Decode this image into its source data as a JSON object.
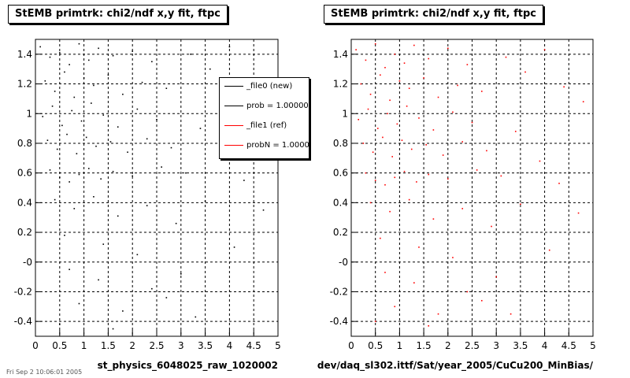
{
  "panels": [
    {
      "title": "StEMB primtrk: chi2/ndf x,y fit, ftpc",
      "xlabel": "st_physics_6048025_raw_1020002"
    },
    {
      "title": "StEMB primtrk: chi2/ndf x,y fit, ftpc",
      "xlabel": "dev/daq_sl302.ittf/Sat/year_2005/CuCu200_MinBias/"
    }
  ],
  "legend": {
    "entries": [
      {
        "label": "_file0 (new)",
        "color": "#000000"
      },
      {
        "label": "prob = 1.000000",
        "color": "#000000"
      },
      {
        "label": "_file1 (ref)",
        "color": "#ff0000"
      },
      {
        "label": "probN = 1.000000",
        "color": "#ff0000"
      }
    ]
  },
  "footer": "Fri Sep 2 10:06:01 2005",
  "chart_data": [
    {
      "type": "scatter",
      "title": "StEMB primtrk: chi2/ndf x,y fit, ftpc",
      "xlabel": "st_physics_6048025_raw_1020002",
      "ylabel": "",
      "xlim": [
        0,
        5
      ],
      "ylim": [
        -0.5,
        1.5
      ],
      "xticks": [
        "0",
        "0.5",
        "1",
        "1.5",
        "2",
        "2.5",
        "3",
        "3.5",
        "4",
        "4.5",
        "5"
      ],
      "yticks": [
        "-0.4",
        "-0.2",
        "-0",
        "0.2",
        "0.4",
        "0.6",
        "0.8",
        "1",
        "1.2",
        "1.4"
      ],
      "grid": true,
      "marker_color": "#000000",
      "series": [
        {
          "name": "_file0 (new)",
          "points": [
            [
              0.1,
              1.45
            ],
            [
              0.3,
              1.38
            ],
            [
              0.5,
              1.41
            ],
            [
              0.7,
              1.33
            ],
            [
              0.9,
              1.47
            ],
            [
              1.1,
              1.36
            ],
            [
              1.3,
              1.44
            ],
            [
              1.6,
              1.39
            ],
            [
              2.0,
              1.42
            ],
            [
              2.4,
              1.35
            ],
            [
              0.2,
              1.22
            ],
            [
              0.4,
              1.15
            ],
            [
              0.6,
              1.28
            ],
            [
              0.8,
              1.11
            ],
            [
              1.0,
              1.24
            ],
            [
              1.2,
              1.19
            ],
            [
              1.5,
              1.26
            ],
            [
              1.8,
              1.13
            ],
            [
              2.2,
              1.21
            ],
            [
              2.7,
              1.17
            ],
            [
              0.15,
              0.98
            ],
            [
              0.35,
              1.05
            ],
            [
              0.55,
              0.92
            ],
            [
              0.75,
              1.02
            ],
            [
              0.95,
              0.95
            ],
            [
              1.15,
              1.07
            ],
            [
              1.4,
              0.99
            ],
            [
              1.7,
              0.91
            ],
            [
              2.1,
              1.03
            ],
            [
              2.5,
              0.96
            ],
            [
              0.25,
              0.82
            ],
            [
              0.45,
              0.76
            ],
            [
              0.65,
              0.86
            ],
            [
              0.85,
              0.73
            ],
            [
              1.05,
              0.84
            ],
            [
              1.25,
              0.78
            ],
            [
              1.55,
              0.81
            ],
            [
              1.9,
              0.74
            ],
            [
              2.3,
              0.83
            ],
            [
              2.8,
              0.77
            ],
            [
              0.3,
              0.62
            ],
            [
              0.5,
              0.57
            ],
            [
              0.7,
              0.54
            ],
            [
              0.9,
              0.59
            ],
            [
              1.1,
              0.63
            ],
            [
              1.35,
              0.56
            ],
            [
              1.6,
              0.61
            ],
            [
              2.0,
              0.58
            ],
            [
              2.6,
              0.64
            ],
            [
              3.1,
              0.6
            ],
            [
              0.4,
              0.42
            ],
            [
              0.8,
              0.36
            ],
            [
              1.2,
              0.44
            ],
            [
              1.7,
              0.31
            ],
            [
              2.3,
              0.38
            ],
            [
              2.9,
              0.26
            ],
            [
              3.5,
              0.41
            ],
            [
              0.6,
              0.18
            ],
            [
              1.4,
              0.12
            ],
            [
              2.1,
              0.05
            ],
            [
              0.7,
              -0.05
            ],
            [
              1.3,
              -0.12
            ],
            [
              2.4,
              -0.18
            ],
            [
              3.0,
              -0.08
            ],
            [
              0.9,
              -0.28
            ],
            [
              1.8,
              -0.33
            ],
            [
              2.7,
              -0.24
            ],
            [
              0.5,
              -0.42
            ],
            [
              1.6,
              -0.45
            ],
            [
              3.3,
              -0.37
            ],
            [
              3.2,
              1.4
            ],
            [
              3.6,
              1.3
            ],
            [
              4.0,
              1.45
            ],
            [
              4.4,
              1.2
            ],
            [
              4.8,
              1.1
            ],
            [
              3.4,
              0.9
            ],
            [
              3.9,
              0.7
            ],
            [
              4.3,
              0.55
            ],
            [
              4.7,
              0.35
            ],
            [
              4.1,
              0.1
            ]
          ]
        }
      ]
    },
    {
      "type": "scatter",
      "title": "StEMB primtrk: chi2/ndf x,y fit, ftpc",
      "xlabel": "dev/daq_sl302.ittf/Sat/year_2005/CuCu200_MinBias/",
      "ylabel": "",
      "xlim": [
        0,
        5
      ],
      "ylim": [
        -0.5,
        1.5
      ],
      "xticks": [
        "0",
        "0.5",
        "1",
        "1.5",
        "2",
        "2.5",
        "3",
        "3.5",
        "4",
        "4.5",
        "5"
      ],
      "yticks": [
        "-0.4",
        "-0.2",
        "-0",
        "0.2",
        "0.4",
        "0.6",
        "0.8",
        "1",
        "1.2",
        "1.4"
      ],
      "grid": true,
      "marker_color": "#ff0000",
      "series": [
        {
          "name": "_file1 (ref)",
          "points": [
            [
              0.1,
              1.43
            ],
            [
              0.3,
              1.36
            ],
            [
              0.5,
              1.47
            ],
            [
              0.7,
              1.31
            ],
            [
              0.9,
              1.4
            ],
            [
              1.1,
              1.34
            ],
            [
              1.3,
              1.46
            ],
            [
              1.6,
              1.37
            ],
            [
              2.0,
              1.44
            ],
            [
              2.4,
              1.33
            ],
            [
              0.2,
              1.2
            ],
            [
              0.4,
              1.13
            ],
            [
              0.6,
              1.26
            ],
            [
              0.8,
              1.09
            ],
            [
              1.0,
              1.22
            ],
            [
              1.2,
              1.17
            ],
            [
              1.5,
              1.24
            ],
            [
              1.8,
              1.11
            ],
            [
              2.2,
              1.19
            ],
            [
              2.7,
              1.15
            ],
            [
              0.15,
              0.96
            ],
            [
              0.35,
              1.03
            ],
            [
              0.55,
              0.9
            ],
            [
              0.75,
              1.0
            ],
            [
              0.95,
              0.93
            ],
            [
              1.15,
              1.05
            ],
            [
              1.4,
              0.97
            ],
            [
              1.7,
              0.89
            ],
            [
              2.1,
              1.01
            ],
            [
              2.5,
              0.94
            ],
            [
              0.25,
              0.8
            ],
            [
              0.45,
              0.74
            ],
            [
              0.65,
              0.84
            ],
            [
              0.85,
              0.71
            ],
            [
              1.05,
              0.82
            ],
            [
              1.25,
              0.76
            ],
            [
              1.55,
              0.79
            ],
            [
              1.9,
              0.72
            ],
            [
              2.3,
              0.81
            ],
            [
              2.8,
              0.75
            ],
            [
              0.3,
              0.6
            ],
            [
              0.5,
              0.55
            ],
            [
              0.7,
              0.52
            ],
            [
              0.9,
              0.57
            ],
            [
              1.1,
              0.61
            ],
            [
              1.35,
              0.54
            ],
            [
              1.6,
              0.59
            ],
            [
              2.0,
              0.56
            ],
            [
              2.6,
              0.62
            ],
            [
              3.1,
              0.58
            ],
            [
              0.4,
              0.4
            ],
            [
              0.8,
              0.34
            ],
            [
              1.2,
              0.42
            ],
            [
              1.7,
              0.29
            ],
            [
              2.3,
              0.36
            ],
            [
              2.9,
              0.24
            ],
            [
              3.5,
              0.39
            ],
            [
              0.6,
              0.16
            ],
            [
              1.4,
              0.1
            ],
            [
              2.1,
              0.03
            ],
            [
              0.7,
              -0.07
            ],
            [
              1.3,
              -0.14
            ],
            [
              2.4,
              -0.2
            ],
            [
              3.0,
              -0.1
            ],
            [
              0.9,
              -0.3
            ],
            [
              1.8,
              -0.35
            ],
            [
              2.7,
              -0.26
            ],
            [
              0.5,
              -0.4
            ],
            [
              1.6,
              -0.43
            ],
            [
              3.3,
              -0.35
            ],
            [
              3.2,
              1.38
            ],
            [
              3.6,
              1.28
            ],
            [
              4.0,
              1.43
            ],
            [
              4.4,
              1.18
            ],
            [
              4.8,
              1.08
            ],
            [
              3.4,
              0.88
            ],
            [
              3.9,
              0.68
            ],
            [
              4.3,
              0.53
            ],
            [
              4.7,
              0.33
            ],
            [
              4.1,
              0.08
            ]
          ]
        }
      ]
    }
  ]
}
